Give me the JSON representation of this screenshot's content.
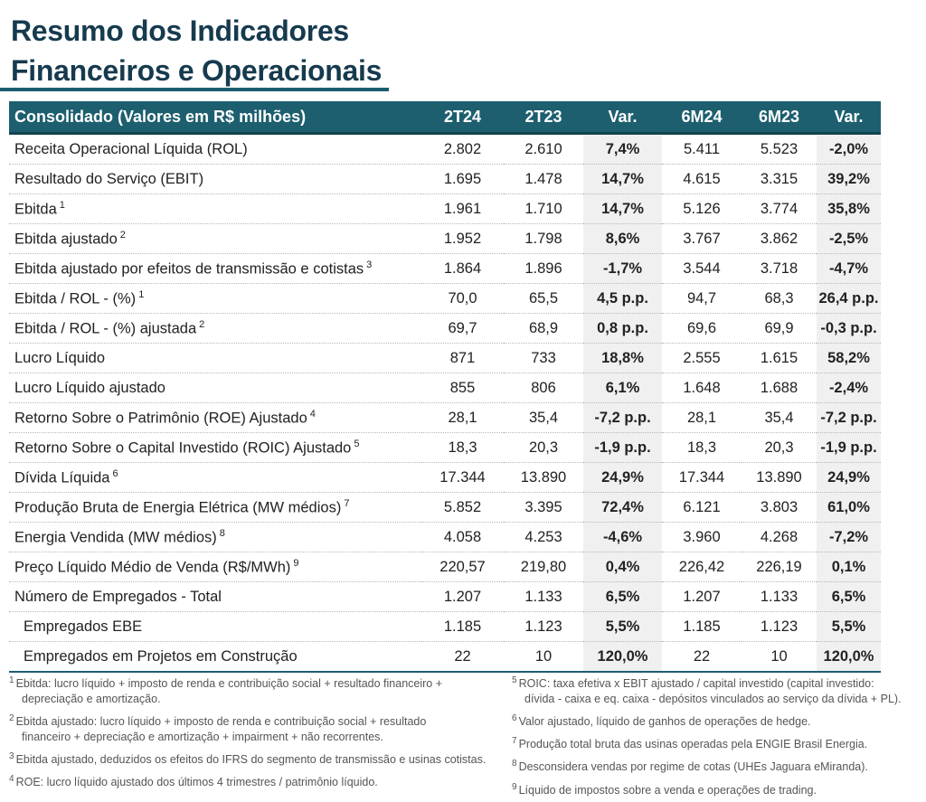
{
  "title": {
    "line1": "Resumo dos Indicadores",
    "line2": "Financeiros e Operacionais"
  },
  "table": {
    "header": [
      "Consolidado (Valores em R$ milhões)",
      "2T24",
      "2T23",
      "Var.",
      "6M24",
      "6M23",
      "Var."
    ],
    "rows": [
      {
        "label": "Receita Operacional Líquida (ROL)",
        "sup": "",
        "values": [
          "2.802",
          "2.610",
          "7,4%",
          "5.411",
          "5.523",
          "-2,0%"
        ]
      },
      {
        "label": "Resultado do Serviço (EBIT)",
        "sup": "",
        "values": [
          "1.695",
          "1.478",
          "14,7%",
          "4.615",
          "3.315",
          "39,2%"
        ]
      },
      {
        "label": "Ebitda",
        "sup": "1",
        "values": [
          "1.961",
          "1.710",
          "14,7%",
          "5.126",
          "3.774",
          "35,8%"
        ]
      },
      {
        "label": "Ebitda ajustado",
        "sup": "2",
        "values": [
          "1.952",
          "1.798",
          "8,6%",
          "3.767",
          "3.862",
          "-2,5%"
        ]
      },
      {
        "label": "Ebitda ajustado por efeitos de transmissão e cotistas",
        "sup": "3",
        "values": [
          "1.864",
          "1.896",
          "-1,7%",
          "3.544",
          "3.718",
          "-4,7%"
        ]
      },
      {
        "label": "Ebitda / ROL - (%)",
        "sup": "1",
        "values": [
          "70,0",
          "65,5",
          "4,5 p.p.",
          "94,7",
          "68,3",
          "26,4 p.p."
        ]
      },
      {
        "label": "Ebitda / ROL - (%) ajustada",
        "sup": "2",
        "values": [
          "69,7",
          "68,9",
          "0,8 p.p.",
          "69,6",
          "69,9",
          "-0,3 p.p."
        ]
      },
      {
        "label": "Lucro Líquido",
        "sup": "",
        "values": [
          "871",
          "733",
          "18,8%",
          "2.555",
          "1.615",
          "58,2%"
        ]
      },
      {
        "label": "Lucro Líquido ajustado",
        "sup": "",
        "values": [
          "855",
          "806",
          "6,1%",
          "1.648",
          "1.688",
          "-2,4%"
        ]
      },
      {
        "label": "Retorno Sobre o Patrimônio (ROE) Ajustado",
        "sup": "4",
        "values": [
          "28,1",
          "35,4",
          "-7,2 p.p.",
          "28,1",
          "35,4",
          "-7,2 p.p."
        ]
      },
      {
        "label": "Retorno Sobre o Capital Investido (ROIC) Ajustado",
        "sup": "5",
        "values": [
          "18,3",
          "20,3",
          "-1,9 p.p.",
          "18,3",
          "20,3",
          "-1,9 p.p."
        ]
      },
      {
        "label": "Dívida Líquida",
        "sup": "6",
        "values": [
          "17.344",
          "13.890",
          "24,9%",
          "17.344",
          "13.890",
          "24,9%"
        ]
      },
      {
        "label": "Produção Bruta de Energia Elétrica (MW médios)",
        "sup": "7",
        "values": [
          "5.852",
          "3.395",
          "72,4%",
          "6.121",
          "3.803",
          "61,0%"
        ]
      },
      {
        "label": "Energia Vendida (MW médios)",
        "sup": "8",
        "values": [
          "4.058",
          "4.253",
          "-4,6%",
          "3.960",
          "4.268",
          "-7,2%"
        ]
      },
      {
        "label": "Preço Líquido Médio de Venda (R$/MWh)",
        "sup": "9",
        "values": [
          "220,57",
          "219,80",
          "0,4%",
          "226,42",
          "226,19",
          "0,1%"
        ]
      },
      {
        "label": "Número de Empregados - Total",
        "sup": "",
        "values": [
          "1.207",
          "1.133",
          "6,5%",
          "1.207",
          "1.133",
          "6,5%"
        ]
      },
      {
        "label": "Empregados EBE",
        "sup": "",
        "indent": true,
        "values": [
          "1.185",
          "1.123",
          "5,5%",
          "1.185",
          "1.123",
          "5,5%"
        ]
      },
      {
        "label": "Empregados em Projetos em Construção",
        "sup": "",
        "indent": true,
        "values": [
          "22",
          "10",
          "120,0%",
          "22",
          "10",
          "120,0%"
        ]
      }
    ]
  },
  "footnotes": {
    "left": [
      {
        "n": "1",
        "line1": "Ebitda: lucro líquido + imposto de renda e contribuição social + resultado financeiro +",
        "line2": "depreciação e amortização."
      },
      {
        "n": "2",
        "line1": "Ebitda ajustado: lucro líquido + imposto de renda e contribuição social + resultado",
        "line2": "financeiro + depreciação e amortização + impairment + não recorrentes."
      },
      {
        "n": "3",
        "line1": "Ebitda ajustado, deduzidos os efeitos do IFRS do segmento de transmissão e usinas cotistas.",
        "line2": ""
      },
      {
        "n": "4",
        "line1": "ROE: lucro líquido ajustado dos últimos 4 trimestres / patrimônio líquido.",
        "line2": ""
      }
    ],
    "right": [
      {
        "n": "5",
        "line1": "ROIC: taxa efetiva x EBIT ajustado / capital investido (capital investido:",
        "line2": "dívida - caixa e eq. caixa - depósitos vinculados ao serviço da dívida + PL)."
      },
      {
        "n": "6",
        "line1": "Valor ajustado, líquido de ganhos de operações de hedge.",
        "line2": ""
      },
      {
        "n": "7",
        "line1": "Produção total bruta das usinas operadas pela ENGIE Brasil Energia.",
        "line2": ""
      },
      {
        "n": "8",
        "line1": "Desconsidera vendas por regime de cotas (UHEs Jaguara eMiranda).",
        "line2": ""
      },
      {
        "n": "9",
        "line1": "Líquido de impostos sobre a venda e operações de trading.",
        "line2": ""
      }
    ]
  }
}
